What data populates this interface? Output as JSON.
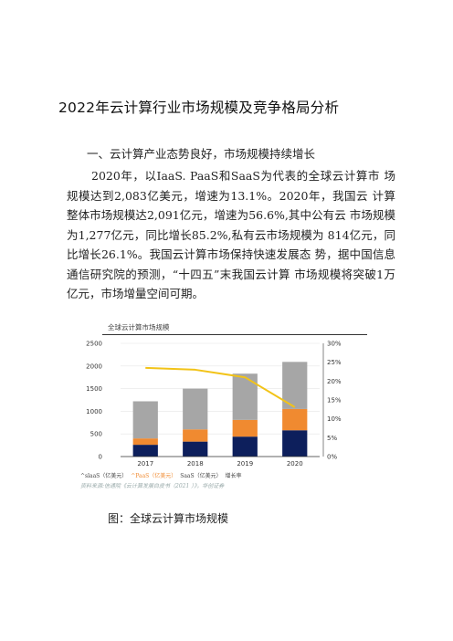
{
  "document": {
    "title": "2022年云计算行业市场规模及竞争格局分析",
    "heading": "一、云计算产业态势良好，市场规模持续增长",
    "paragraph": "2020年，以IaaS. PaaS和SaaS为代表的全球云计算市 场规模达到2,083亿美元，增速为13.1%。2020年，我国云 计算整体市场规模达2,091亿元，增速为56.6%,其中公有云 市场规模为1,277亿元，同比增长85.2%,私有云市场规模为 814亿元，同比增长26.1%。我国云计算市场保持快速发展态 势，据中国信息通信研究院的预测，“十四五”末我国云计算 市场规模将突破1万亿元，市场增量空间可期。",
    "figure_caption": "图：全球云计算市场规模"
  },
  "chart_data": {
    "type": "bar",
    "title": "全球云计算市场规模",
    "categories": [
      "2017",
      "2018",
      "2019",
      "2020"
    ],
    "series": [
      {
        "name": "IaaS（亿美元）",
        "values": [
          260,
          330,
          440,
          580
        ],
        "color": "#0d1f5c"
      },
      {
        "name": "PaaS（亿美元）",
        "values": [
          140,
          270,
          370,
          470
        ],
        "color": "#f08a30"
      },
      {
        "name": "SaaS（亿美元）",
        "values": [
          820,
          900,
          1020,
          1040
        ],
        "color": "#a6a6a6"
      },
      {
        "name": "增长率",
        "type": "line",
        "values": [
          23.5,
          23,
          21,
          13.1
        ],
        "color": "#f2c318"
      }
    ],
    "ylim": [
      0,
      2500
    ],
    "yticks": [
      "0",
      "500",
      "1000",
      "1500",
      "2000",
      "2500"
    ],
    "y2lim": [
      0,
      30
    ],
    "y2ticks": [
      "0%",
      "5%",
      "10%",
      "15%",
      "20%",
      "25%",
      "30%"
    ],
    "legend_text": {
      "iaas": "^slaaS（亿美元）",
      "paas": "^PaaS（亿美元）",
      "saas": "SaaS（亿美元）",
      "rate": "增长率"
    },
    "source": "资料来源:信通院《云计算发展白皮书（2021 ）》，华创证券"
  }
}
